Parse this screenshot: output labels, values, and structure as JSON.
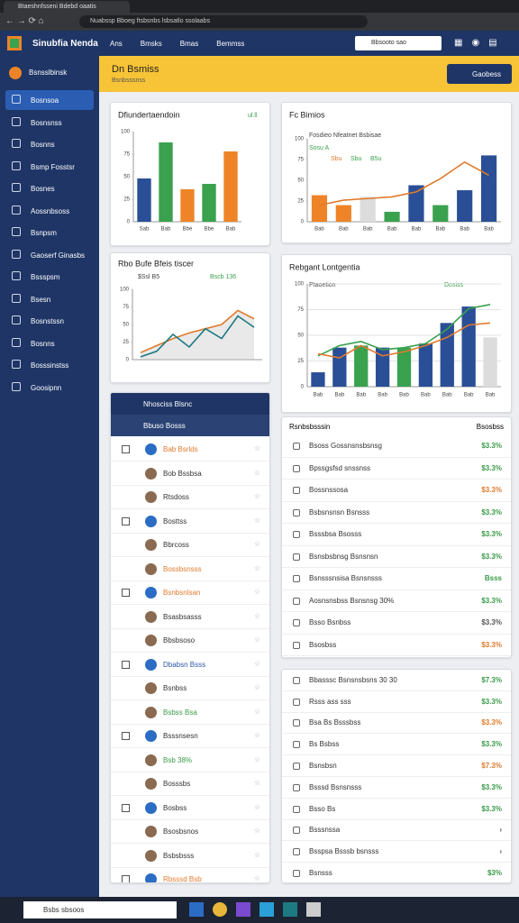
{
  "browser": {
    "tab": "Btaeshnfsseni Bdebd oaatis",
    "address": "Nuabssp Bboeg ftsbsnbs lsbsatlo ssolaabs"
  },
  "header": {
    "brand": "Sinubfia Nenda",
    "nav": [
      "Ans",
      "Bmsks",
      "Bmas",
      "Bemmss"
    ],
    "search": "Bbsooto sao"
  },
  "sidebar": {
    "top": "Bsnsslbinsk",
    "items": [
      "Bosnsoa",
      "Bosnsnss",
      "Bosnns",
      "Bsmp Fosstsr",
      "Bosnes",
      "Aossnbsoss",
      "Bsnpsm",
      "Gaoserf Ginasbs",
      "Bssspsm",
      "Bsesn",
      "Bosnstssn",
      "Bosnns",
      "Bosssinstss",
      "Goosipnn"
    ]
  },
  "banner": {
    "title": "Dn Bsmiss",
    "subtitle": "Bsnbsssnss",
    "button": "Gaobess"
  },
  "charts": [
    {
      "type": "bar",
      "title": "Dfiundertaendoin",
      "badge": "ul.ll",
      "categories": [
        "Sab",
        "Bab",
        "Bbe",
        "Bbe",
        "Bab"
      ],
      "ylim": [
        0,
        100
      ],
      "yticks": [
        0,
        25,
        50,
        75,
        100
      ],
      "grid": false,
      "series": [
        {
          "kind": "bar",
          "colors": [
            "#2a4f96",
            "#3aa14f",
            "#ee8427",
            "#3aa14f",
            "#ee8427"
          ],
          "values": [
            48,
            88,
            36,
            42,
            78
          ]
        }
      ]
    },
    {
      "type": "line",
      "title": "Rbo Bufe Bfeis tiscer",
      "legend_texts": [
        "$Ssl B5",
        "Bscb 136"
      ],
      "categories": [
        null,
        null,
        null,
        null,
        null,
        null,
        null,
        null
      ],
      "ylim": [
        0,
        100
      ],
      "yticks": [
        0,
        25,
        50,
        75,
        100
      ],
      "grid": false,
      "series": [
        {
          "kind": "line",
          "color": "#e07a2c",
          "values": [
            10,
            20,
            30,
            38,
            44,
            50,
            70,
            58
          ]
        },
        {
          "kind": "line",
          "color": "#1d7a82",
          "values": [
            4,
            12,
            36,
            18,
            44,
            30,
            62,
            46
          ]
        }
      ]
    },
    {
      "type": "bar",
      "title": "Fc Bimios",
      "legend_texts": [
        "Fosdieo Nfeatnet Bsbisae",
        "Sosu A",
        "Sbu",
        "Sbu",
        "B5u"
      ],
      "categories": [
        "Bab",
        "Bab",
        "Bab",
        "Bab",
        "Bab",
        "Bab",
        "Bab",
        "Bab"
      ],
      "ylim": [
        0,
        100
      ],
      "yticks": [
        0,
        25,
        50,
        75,
        100
      ],
      "grid": false,
      "series": [
        {
          "kind": "bar",
          "colors": [
            "#ee8427",
            "#ee8427",
            "#dcdcdc",
            "#3aa14f",
            "#2a4f96",
            "#3aa14f",
            "#2a4f96",
            "#2a4f96"
          ],
          "values": [
            32,
            20,
            30,
            12,
            44,
            20,
            38,
            80
          ]
        },
        {
          "kind": "line",
          "color": "#e07a2c",
          "values": [
            20,
            26,
            28,
            30,
            36,
            52,
            72,
            56
          ]
        }
      ]
    },
    {
      "type": "bar",
      "title": "Rebgant Lontgentia",
      "legend_texts": [
        "Ptaoetion",
        "Dosiss"
      ],
      "categories": [
        "Bab",
        "Bab",
        "Bab",
        "Bab",
        "Bab",
        "Bab",
        "Bab",
        "Bab",
        "Bab"
      ],
      "ylim": [
        0,
        100
      ],
      "yticks": [
        0,
        25,
        50,
        75,
        100
      ],
      "grid": true,
      "series": [
        {
          "kind": "bar",
          "colors": [
            "#2a4f96",
            "#2a4f96",
            "#3aa14f",
            "#2a4f96",
            "#3aa14f",
            "#2a4f96",
            "#2a4f96",
            "#2a4f96",
            "#dcdcdc"
          ],
          "values": [
            14,
            38,
            40,
            38,
            38,
            42,
            62,
            78,
            48
          ]
        },
        {
          "kind": "line",
          "color": "#3aa14f",
          "values": [
            30,
            40,
            44,
            36,
            38,
            42,
            56,
            76,
            80
          ]
        },
        {
          "kind": "line",
          "color": "#e07a2c",
          "values": [
            32,
            28,
            40,
            30,
            34,
            40,
            48,
            60,
            62
          ]
        }
      ]
    }
  ],
  "left_list": {
    "title": "Nhosciss Blsnc",
    "subtitle": "Bbuso Bosss",
    "rows": [
      {
        "text": "Bab Bsrlds",
        "color": "#e07a2c"
      },
      {
        "text": "Bob Bssbsa",
        "color": "#333"
      },
      {
        "text": "Rtsdoss",
        "color": "#333"
      },
      {
        "text": "Bosttss",
        "color": "#333"
      },
      {
        "text": "Bbrcoss",
        "color": "#333"
      },
      {
        "text": "Bossbsnsss",
        "color": "#e07a2c"
      },
      {
        "text": "Bsnbsnlsan",
        "color": "#e07a2c"
      },
      {
        "text": "Bsasbsasss",
        "color": "#333"
      },
      {
        "text": "Bbsbsoso",
        "color": "#333"
      },
      {
        "text": "Dbabsn Bsss",
        "color": "#2a5aa8"
      },
      {
        "text": "Bsnbss",
        "color": "#333"
      },
      {
        "text": "Bsbss Bsa",
        "color": "#3a9a48"
      },
      {
        "text": "Bsssnsesn",
        "color": "#333"
      },
      {
        "text": "Bsb 38%",
        "color": "#3a9a48"
      },
      {
        "text": "Bosssbs",
        "color": "#333"
      },
      {
        "text": "Bosbss",
        "color": "#333"
      },
      {
        "text": "Bsosbsnos",
        "color": "#333"
      },
      {
        "text": "Bsbsbsss",
        "color": "#333"
      },
      {
        "text": "Rbsssd Bsb",
        "color": "#e07a2c"
      }
    ]
  },
  "right_list_1": {
    "title": "Rsnbsbsssin",
    "title_right": "Bsosbss",
    "rows": [
      {
        "text": "Bsoss Gossnsnsbsnsg",
        "amount": "$3.3%",
        "color": "#3a9a48"
      },
      {
        "text": "Bpssgsfsd snssnss",
        "amount": "$3.3%",
        "color": "#3a9a48"
      },
      {
        "text": "Bossnssosa",
        "amount": "$3.3%",
        "color": "#e07a2c"
      },
      {
        "text": "Bsbsnsnsn Bsnsss",
        "amount": "$3.3%",
        "color": "#3a9a48"
      },
      {
        "text": "Bsssbsa Bsosss",
        "amount": "$3.3%",
        "color": "#3a9a48"
      },
      {
        "text": "Bsnsbsbnsg Bsnsnsn",
        "amount": "$3.3%",
        "color": "#3a9a48"
      },
      {
        "text": "Bsnsssnsisa Bsnsnsss",
        "amount": "Bsss",
        "color": "#3a9a48"
      },
      {
        "text": "Aosnsnsbss Bsnsnsg 30%",
        "amount": "$3.3%",
        "color": "#3a9a48"
      },
      {
        "text": "Bsso Bsnbss",
        "amount": "$3.3%",
        "color": "#555"
      },
      {
        "text": "Bsosbss",
        "amount": "$3.3%",
        "color": "#e07a2c"
      }
    ]
  },
  "right_list_2": {
    "rows": [
      {
        "text": "Bbasssc Bsnsnsbsns 30 30",
        "amount": "$7.3%",
        "color": "#3a9a48"
      },
      {
        "text": "Rsss ass sss",
        "amount": "$3.3%",
        "color": "#3a9a48"
      },
      {
        "text": "Bsa Bs Bsssbss",
        "amount": "$3.3%",
        "color": "#e07a2c"
      },
      {
        "text": "Bs Bsbss",
        "amount": "$3.3%",
        "color": "#3a9a48"
      },
      {
        "text": "Bsnsbsn",
        "amount": "$7.3%",
        "color": "#e07a2c"
      },
      {
        "text": "Bsssd Bsnsnsss",
        "amount": "$3.3%",
        "color": "#3a9a48"
      },
      {
        "text": "Bsso Bs",
        "amount": "$3.3%",
        "color": "#3a9a48"
      },
      {
        "text": "Bsssnssa",
        "amount": "›",
        "color": "#555"
      },
      {
        "text": "Bsspsa Bsssb bsnsss",
        "amount": "›",
        "color": "#555"
      },
      {
        "text": "Bsnsss",
        "amount": "$3%",
        "color": "#3a9a48"
      }
    ]
  },
  "taskbar": {
    "search": "Bsbs sbsoos"
  }
}
